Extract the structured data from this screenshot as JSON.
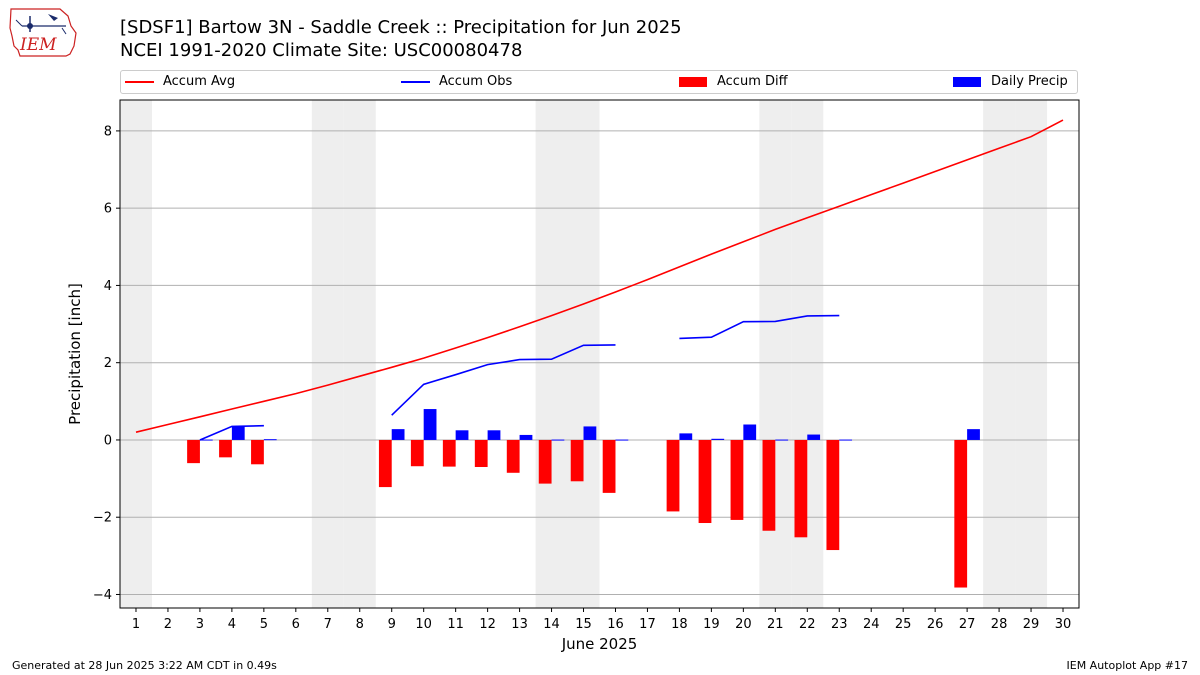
{
  "header": {
    "title": "[SDSF1] Bartow 3N - Saddle Creek :: Precipitation for Jun 2025",
    "subtitle": "NCEI 1991-2020 Climate Site: USC00080478",
    "logo_text": "IEM"
  },
  "legend": [
    {
      "label": "Accum Avg",
      "kind": "line",
      "color": "#ff0000"
    },
    {
      "label": "Accum Obs",
      "kind": "line",
      "color": "#0000ff"
    },
    {
      "label": "Accum Diff",
      "kind": "box",
      "color": "#ff0000"
    },
    {
      "label": "Daily Precip",
      "kind": "box",
      "color": "#0000ff"
    }
  ],
  "footer": {
    "left": "Generated at 28 Jun 2025 3:22 AM CDT in 0.49s",
    "right": "IEM Autoplot App #17"
  },
  "chart_data": {
    "type": "bar",
    "title": "[SDSF1] Bartow 3N - Saddle Creek :: Precipitation for Jun 2025",
    "xlabel": "June 2025",
    "ylabel": "Precipitation [inch]",
    "xlim": [
      0.5,
      30.5
    ],
    "ylim": [
      -4.35,
      8.8
    ],
    "yticks": [
      -4,
      -2,
      0,
      2,
      4,
      6,
      8
    ],
    "x": [
      1,
      2,
      3,
      4,
      5,
      6,
      7,
      8,
      9,
      10,
      11,
      12,
      13,
      14,
      15,
      16,
      17,
      18,
      19,
      20,
      21,
      22,
      23,
      24,
      25,
      26,
      27,
      28,
      29,
      30
    ],
    "weekend_days": [
      1,
      7,
      8,
      14,
      15,
      21,
      22,
      28,
      29
    ],
    "grid": "horizontal",
    "series": [
      {
        "name": "Accum Avg",
        "type": "line",
        "color": "#ff0000",
        "values": [
          0.2,
          0.4,
          0.6,
          0.8,
          1.0,
          1.2,
          1.42,
          1.65,
          1.88,
          2.12,
          2.38,
          2.65,
          2.93,
          3.22,
          3.52,
          3.83,
          4.15,
          4.48,
          4.81,
          5.13,
          5.45,
          5.75,
          6.05,
          6.35,
          6.65,
          6.95,
          7.25,
          7.55,
          7.85,
          8.28
        ]
      },
      {
        "name": "Accum Obs",
        "type": "line",
        "color": "#0000ff",
        "values": [
          null,
          null,
          0.0,
          0.35,
          0.37,
          null,
          null,
          null,
          0.64,
          1.44,
          1.69,
          1.95,
          2.08,
          2.09,
          2.45,
          2.46,
          null,
          2.63,
          2.66,
          3.06,
          3.07,
          3.21,
          3.22,
          null,
          null,
          null,
          null,
          null,
          null,
          null
        ]
      },
      {
        "name": "Accum Diff",
        "type": "bar",
        "color": "#ff0000",
        "values": [
          null,
          null,
          -0.6,
          -0.45,
          -0.63,
          null,
          null,
          null,
          -1.22,
          -0.68,
          -0.69,
          -0.7,
          -0.85,
          -1.13,
          -1.07,
          -1.37,
          null,
          -1.85,
          -2.15,
          -2.07,
          -2.35,
          -2.52,
          -2.85,
          null,
          null,
          null,
          -3.82,
          null,
          null,
          null
        ]
      },
      {
        "name": "Daily Precip",
        "type": "bar",
        "color": "#0000ff",
        "values": [
          null,
          null,
          0.01,
          0.35,
          0.02,
          null,
          null,
          null,
          0.28,
          0.8,
          0.25,
          0.25,
          0.13,
          0.01,
          0.35,
          0.01,
          null,
          0.17,
          0.03,
          0.4,
          0.01,
          0.14,
          0.01,
          null,
          null,
          null,
          0.28,
          null,
          null,
          null
        ]
      }
    ]
  }
}
